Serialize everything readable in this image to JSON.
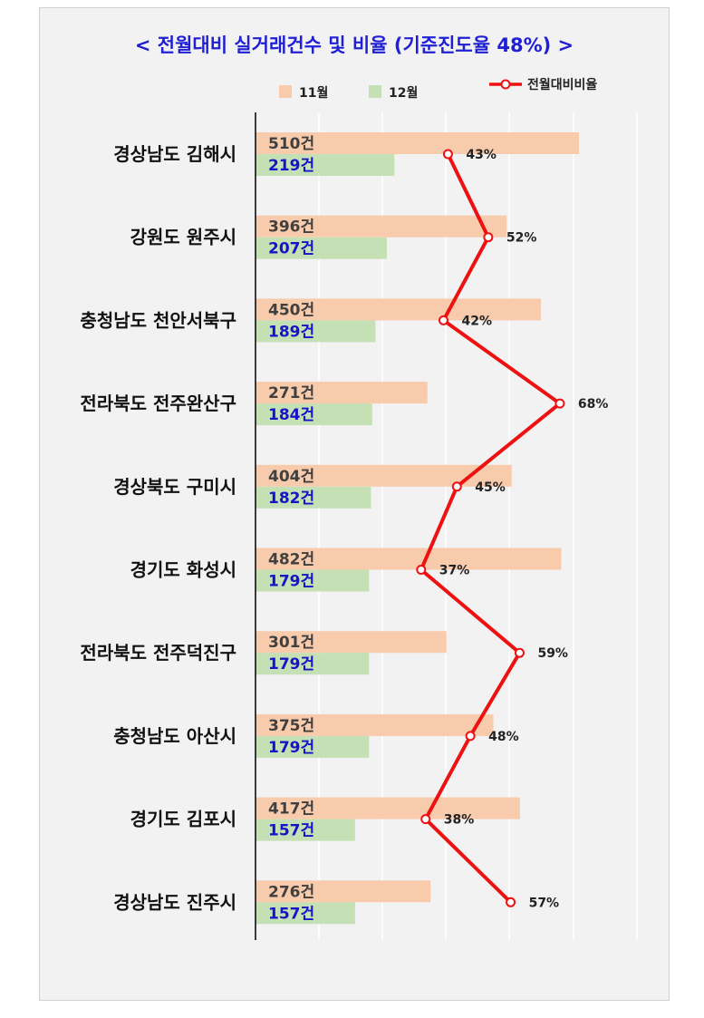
{
  "chart_data": {
    "type": "bar",
    "orientation": "horizontal",
    "title": "< 전월대비 실거래건수 및 비율 (기준진도율 48%) >",
    "categories": [
      "경상남도 김해시",
      "강원도 원주시",
      "충청남도 천안서북구",
      "전라북도 전주완산구",
      "경상북도 구미시",
      "경기도 화성시",
      "전라북도 전주덕진구",
      "충청남도 아산시",
      "경기도 김포시",
      "경상남도 진주시"
    ],
    "series": [
      {
        "name": "11월",
        "type": "bar",
        "color": "#f8cbad",
        "values": [
          510,
          396,
          450,
          271,
          404,
          482,
          301,
          375,
          417,
          276
        ]
      },
      {
        "name": "12월",
        "type": "bar",
        "color": "#c5e0b4",
        "values": [
          219,
          207,
          189,
          184,
          182,
          179,
          179,
          179,
          157,
          157
        ]
      },
      {
        "name": "전월대비비율",
        "type": "line",
        "color": "#ee1111",
        "values": [
          43,
          52,
          42,
          68,
          45,
          37,
          59,
          48,
          38,
          57
        ]
      }
    ],
    "value_suffix": "건",
    "pct_suffix": "%",
    "legend_position": "top",
    "grid": true
  }
}
